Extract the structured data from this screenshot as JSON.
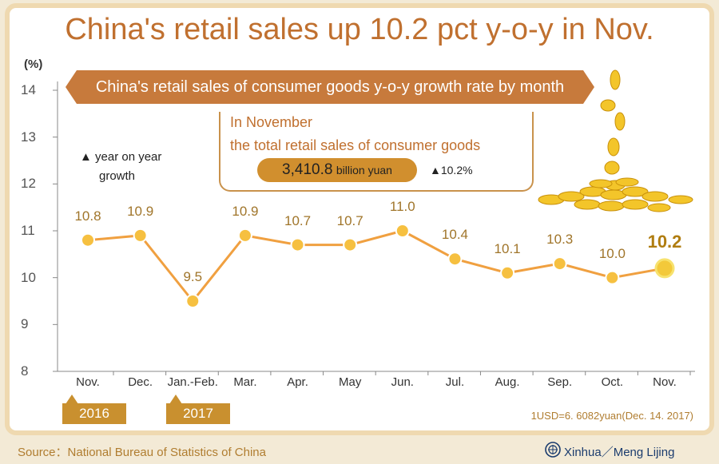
{
  "title": "China's retail sales up 10.2 pct y-o-y in Nov.",
  "unit_label": "(%)",
  "ribbon_label": "China's retail sales of consumer goods y-o-y growth rate by month",
  "legend": {
    "line1": "▲ year on year",
    "line2": "growth"
  },
  "info": {
    "line1": "In November",
    "line2": "the total retail sales of consumer goods",
    "amount": "3,410.8",
    "amount_unit": "billion yuan",
    "growth": "▲10.2%"
  },
  "year_labels": [
    "2016",
    "2017"
  ],
  "exchange_note": "1USD=6. 6082yuan(Dec. 14. 2017)",
  "source": "Source：National Bureau of Statistics of China",
  "credit": "Xinhua／Meng Lijing",
  "colors": {
    "line": "#f0a040",
    "point": "#f6c040",
    "highlight": "#f7e26e",
    "ribbon": "#c77a3c",
    "title": "#c0702f"
  },
  "chart_data": {
    "type": "line",
    "categories": [
      "Nov.",
      "Dec.",
      "Jan.-Feb.",
      "Mar.",
      "Apr.",
      "May",
      "Jun.",
      "Jul.",
      "Aug.",
      "Sep.",
      "Oct.",
      "Nov."
    ],
    "series": [
      {
        "values": [
          10.8,
          10.9,
          9.5,
          10.9,
          10.7,
          10.7,
          11.0,
          10.4,
          10.1,
          10.3,
          10.0,
          10.2
        ]
      }
    ],
    "value_labels": [
      "10.8",
      "10.9",
      "9.5",
      "10.9",
      "10.7",
      "10.7",
      "11.0",
      "10.4",
      "10.1",
      "10.3",
      "10.0",
      "10.2"
    ],
    "ylim": [
      8,
      14
    ],
    "yticks": [
      "8",
      "9",
      "10",
      "11",
      "12",
      "13",
      "14"
    ],
    "highlight_index": 11,
    "grid": false
  }
}
